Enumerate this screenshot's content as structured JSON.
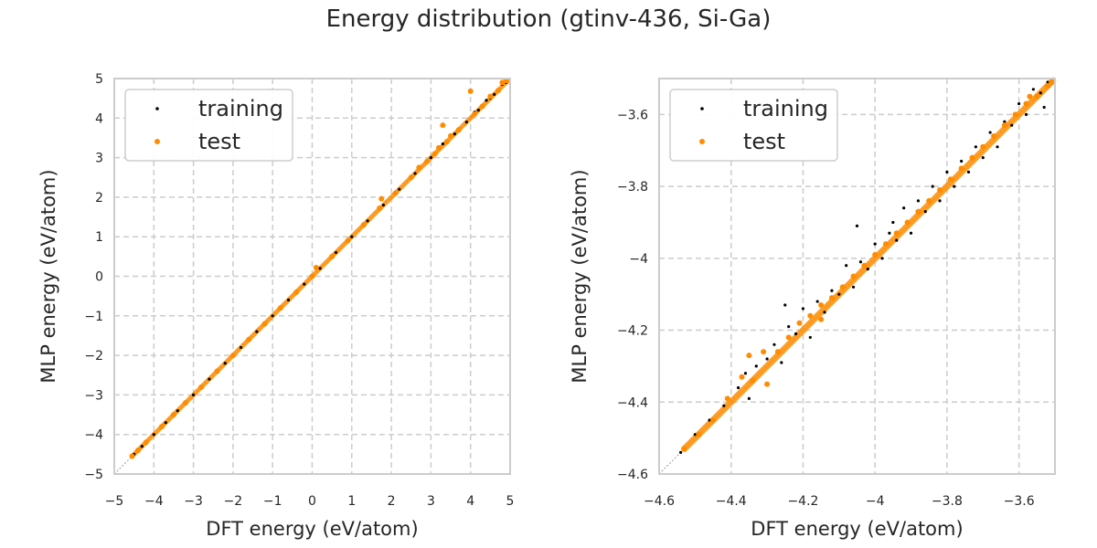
{
  "figure": {
    "title": "Energy distribution (gtinv-436, Si-Ga)"
  },
  "colors": {
    "training": "#000000",
    "test": "#ff8c00",
    "grid": "#cccccc",
    "frame": "#cccccc",
    "diagonal": "#999999"
  },
  "chart_data": [
    {
      "type": "scatter",
      "xlabel": "DFT energy (eV/atom)",
      "ylabel": "MLP energy (eV/atom)",
      "xlim": [
        -5,
        5
      ],
      "ylim": [
        -5,
        5
      ],
      "xticks": [
        -5,
        -4,
        -3,
        -2,
        -1,
        0,
        1,
        2,
        3,
        4,
        5
      ],
      "yticks": [
        -5,
        -4,
        -3,
        -2,
        -1,
        0,
        1,
        2,
        3,
        4,
        5
      ],
      "grid": true,
      "legend_position": "top-left",
      "diagonal": true,
      "series": [
        {
          "name": "training",
          "points": [
            [
              -4.5,
              -4.5
            ],
            [
              -4.3,
              -4.3
            ],
            [
              -4.0,
              -4.0
            ],
            [
              -3.7,
              -3.7
            ],
            [
              -3.4,
              -3.4
            ],
            [
              -3.0,
              -3.0
            ],
            [
              -2.6,
              -2.6
            ],
            [
              -2.2,
              -2.2
            ],
            [
              -1.8,
              -1.8
            ],
            [
              -1.4,
              -1.4
            ],
            [
              -1.0,
              -1.0
            ],
            [
              -0.6,
              -0.6
            ],
            [
              -0.2,
              -0.2
            ],
            [
              0.2,
              0.2
            ],
            [
              0.6,
              0.6
            ],
            [
              1.0,
              1.0
            ],
            [
              1.4,
              1.4
            ],
            [
              1.8,
              1.8
            ],
            [
              2.2,
              2.2
            ],
            [
              2.6,
              2.6
            ],
            [
              3.0,
              3.0
            ],
            [
              3.3,
              3.35
            ],
            [
              3.6,
              3.6
            ],
            [
              3.9,
              3.9
            ],
            [
              4.2,
              4.2
            ],
            [
              4.4,
              4.45
            ],
            [
              4.6,
              4.6
            ],
            [
              4.8,
              4.85
            ],
            [
              4.9,
              4.9
            ],
            [
              4.5,
              4.5
            ],
            [
              4.3,
              4.3
            ],
            [
              4.1,
              4.15
            ]
          ]
        },
        {
          "name": "test",
          "points": [
            [
              -4.55,
              -4.55
            ],
            [
              -4.4,
              -4.4
            ],
            [
              -4.2,
              -4.2
            ],
            [
              -3.8,
              -3.8
            ],
            [
              -3.5,
              -3.5
            ],
            [
              -3.2,
              -3.2
            ],
            [
              -2.8,
              -2.8
            ],
            [
              -2.4,
              -2.4
            ],
            [
              -2.0,
              -2.0
            ],
            [
              -1.6,
              -1.6
            ],
            [
              -1.2,
              -1.2
            ],
            [
              -0.8,
              -0.8
            ],
            [
              -0.4,
              -0.4
            ],
            [
              0.0,
              0.0
            ],
            [
              0.1,
              0.22
            ],
            [
              0.5,
              0.5
            ],
            [
              0.9,
              0.9
            ],
            [
              1.3,
              1.3
            ],
            [
              1.7,
              1.72
            ],
            [
              1.75,
              1.96
            ],
            [
              2.1,
              2.1
            ],
            [
              2.5,
              2.5
            ],
            [
              2.7,
              2.75
            ],
            [
              2.9,
              2.9
            ],
            [
              3.1,
              3.1
            ],
            [
              3.2,
              3.25
            ],
            [
              3.3,
              3.82
            ],
            [
              3.4,
              3.4
            ],
            [
              3.5,
              3.55
            ],
            [
              3.7,
              3.7
            ],
            [
              4.0,
              4.68
            ],
            [
              4.1,
              4.1
            ],
            [
              4.3,
              4.3
            ],
            [
              4.5,
              4.55
            ],
            [
              4.7,
              4.7
            ],
            [
              4.8,
              4.9
            ],
            [
              4.9,
              4.95
            ]
          ]
        }
      ]
    },
    {
      "type": "scatter",
      "xlabel": "DFT energy (eV/atom)",
      "ylabel": "MLP energy (eV/atom)",
      "xlim": [
        -4.6,
        -3.5
      ],
      "ylim": [
        -4.6,
        -3.5
      ],
      "xticks": [
        -4.6,
        -4.4,
        -4.2,
        -4.0,
        -3.8,
        -3.6
      ],
      "yticks": [
        -4.6,
        -4.4,
        -4.2,
        -4.0,
        -3.8,
        -3.6
      ],
      "grid": true,
      "legend_position": "top-left",
      "diagonal": true,
      "series": [
        {
          "name": "training",
          "points": [
            [
              -4.54,
              -4.54
            ],
            [
              -4.5,
              -4.49
            ],
            [
              -4.46,
              -4.45
            ],
            [
              -4.42,
              -4.41
            ],
            [
              -4.38,
              -4.36
            ],
            [
              -4.36,
              -4.32
            ],
            [
              -4.35,
              -4.39
            ],
            [
              -4.33,
              -4.3
            ],
            [
              -4.3,
              -4.28
            ],
            [
              -4.28,
              -4.24
            ],
            [
              -4.26,
              -4.29
            ],
            [
              -4.24,
              -4.19
            ],
            [
              -4.22,
              -4.21
            ],
            [
              -4.2,
              -4.14
            ],
            [
              -4.18,
              -4.22
            ],
            [
              -4.16,
              -4.12
            ],
            [
              -4.14,
              -4.15
            ],
            [
              -4.12,
              -4.09
            ],
            [
              -4.1,
              -4.1
            ],
            [
              -4.08,
              -4.02
            ],
            [
              -4.06,
              -4.08
            ],
            [
              -4.04,
              -4.01
            ],
            [
              -4.02,
              -4.03
            ],
            [
              -4.0,
              -3.96
            ],
            [
              -3.98,
              -4.0
            ],
            [
              -3.96,
              -3.93
            ],
            [
              -3.94,
              -3.95
            ],
            [
              -3.92,
              -3.86
            ],
            [
              -3.9,
              -3.93
            ],
            [
              -3.88,
              -3.84
            ],
            [
              -3.86,
              -3.87
            ],
            [
              -3.84,
              -3.8
            ],
            [
              -3.82,
              -3.84
            ],
            [
              -3.8,
              -3.76
            ],
            [
              -3.78,
              -3.8
            ],
            [
              -3.76,
              -3.73
            ],
            [
              -3.74,
              -3.76
            ],
            [
              -3.72,
              -3.69
            ],
            [
              -3.7,
              -3.72
            ],
            [
              -3.68,
              -3.65
            ],
            [
              -3.66,
              -3.69
            ],
            [
              -3.64,
              -3.62
            ],
            [
              -3.62,
              -3.63
            ],
            [
              -3.6,
              -3.57
            ],
            [
              -3.58,
              -3.6
            ],
            [
              -3.56,
              -3.53
            ],
            [
              -3.54,
              -3.54
            ],
            [
              -3.52,
              -3.51
            ],
            [
              -3.53,
              -3.58
            ],
            [
              -4.25,
              -4.13
            ],
            [
              -4.05,
              -3.91
            ],
            [
              -3.95,
              -3.9
            ],
            [
              -4.3,
              -4.35
            ]
          ]
        },
        {
          "name": "test",
          "points": [
            [
              -4.53,
              -4.53
            ],
            [
              -4.49,
              -4.49
            ],
            [
              -4.45,
              -4.45
            ],
            [
              -4.41,
              -4.39
            ],
            [
              -4.37,
              -4.33
            ],
            [
              -4.34,
              -4.34
            ],
            [
              -4.31,
              -4.26
            ],
            [
              -4.27,
              -4.26
            ],
            [
              -4.24,
              -4.22
            ],
            [
              -4.21,
              -4.18
            ],
            [
              -4.18,
              -4.16
            ],
            [
              -4.15,
              -4.13
            ],
            [
              -4.12,
              -4.11
            ],
            [
              -4.09,
              -4.08
            ],
            [
              -4.06,
              -4.05
            ],
            [
              -4.03,
              -4.02
            ],
            [
              -4.0,
              -3.99
            ],
            [
              -3.97,
              -3.96
            ],
            [
              -3.94,
              -3.93
            ],
            [
              -3.91,
              -3.9
            ],
            [
              -3.88,
              -3.87
            ],
            [
              -3.85,
              -3.84
            ],
            [
              -3.82,
              -3.81
            ],
            [
              -3.79,
              -3.78
            ],
            [
              -3.76,
              -3.75
            ],
            [
              -3.73,
              -3.72
            ],
            [
              -3.7,
              -3.69
            ],
            [
              -3.67,
              -3.66
            ],
            [
              -3.64,
              -3.63
            ],
            [
              -3.61,
              -3.6
            ],
            [
              -3.58,
              -3.57
            ],
            [
              -3.55,
              -3.55
            ],
            [
              -3.52,
              -3.52
            ],
            [
              -3.51,
              -3.51
            ],
            [
              -4.35,
              -4.27
            ],
            [
              -4.3,
              -4.35
            ],
            [
              -4.15,
              -4.17
            ],
            [
              -3.57,
              -3.55
            ]
          ]
        }
      ]
    }
  ]
}
